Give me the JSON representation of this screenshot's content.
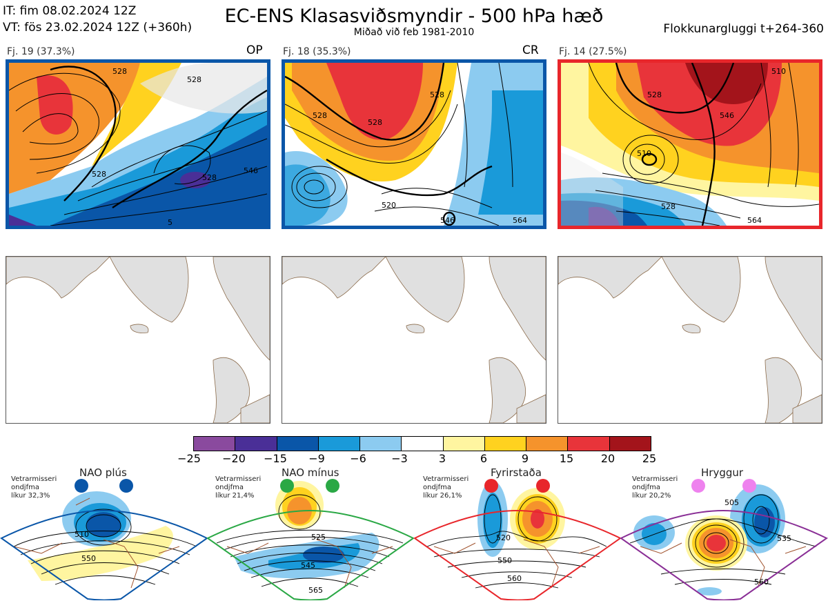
{
  "header": {
    "it": "IT: fim 08.02.2024 12Z",
    "vt": "VT: fös 23.02.2024 12Z  (+360h)",
    "title": "EC-ENS Klasasviðsmyndir - 500 hPa hæð",
    "subtitle": "Miðað við feb 1981-2010",
    "window": "Flokkunargluggi t+264-360"
  },
  "clusters": [
    {
      "label": "Fj. 19 (37.3%)",
      "tag": "OP",
      "border_color": "#0a56a8",
      "contour_labels": [
        "528",
        "528",
        "528",
        "528",
        "546",
        "5"
      ]
    },
    {
      "label": "Fj. 18 (35.3%)",
      "tag": "CR",
      "border_color": "#0a56a8",
      "contour_labels": [
        "528",
        "528",
        "528",
        "520",
        "546",
        "564"
      ]
    },
    {
      "label": "Fj. 14 (27.5%)",
      "tag": "",
      "border_color": "#e8262b",
      "contour_labels": [
        "510",
        "528",
        "546",
        "510",
        "528",
        "564"
      ]
    }
  ],
  "colorbar": {
    "colors": [
      "#8a4a9e",
      "#4a2f97",
      "#0a56a8",
      "#1a9ad9",
      "#8ccbf0",
      "#ffffff",
      "#fff5a0",
      "#ffd21f",
      "#f5932c",
      "#e8343a",
      "#a3141b"
    ],
    "ticks": [
      "−25",
      "−20",
      "−15",
      "−9",
      "−6",
      "−3",
      "3",
      "6",
      "9",
      "15",
      "20",
      "25"
    ]
  },
  "regimes": [
    {
      "name": "NAO plús",
      "note": [
        "Vetrarmisseri",
        "ondjfma",
        "líkur 32,3%"
      ],
      "color": "#0a56a8",
      "dot": "#0a56a8",
      "contour_labels": [
        "510",
        "550"
      ]
    },
    {
      "name": "NAO mínus",
      "note": [
        "Vetrarmisseri",
        "ondjfma",
        "líkur 21,4%"
      ],
      "color": "#2aa845",
      "dot": "#2aa845",
      "contour_labels": [
        "525",
        "545",
        "565"
      ]
    },
    {
      "name": "Fyrirstaða",
      "note": [
        "Vetrarmisseri",
        "ondjfma",
        "líkur 26,1%"
      ],
      "color": "#e8262b",
      "dot": "#e8262b",
      "contour_labels": [
        "520",
        "550",
        "560"
      ]
    },
    {
      "name": "Hryggur",
      "note": [
        "Vetrarmisseri",
        "ondjfma",
        "líkur 20,2%"
      ],
      "color": "#8a2f96",
      "dot": "#ee82ee",
      "contour_labels": [
        "505",
        "535",
        "560"
      ]
    }
  ]
}
